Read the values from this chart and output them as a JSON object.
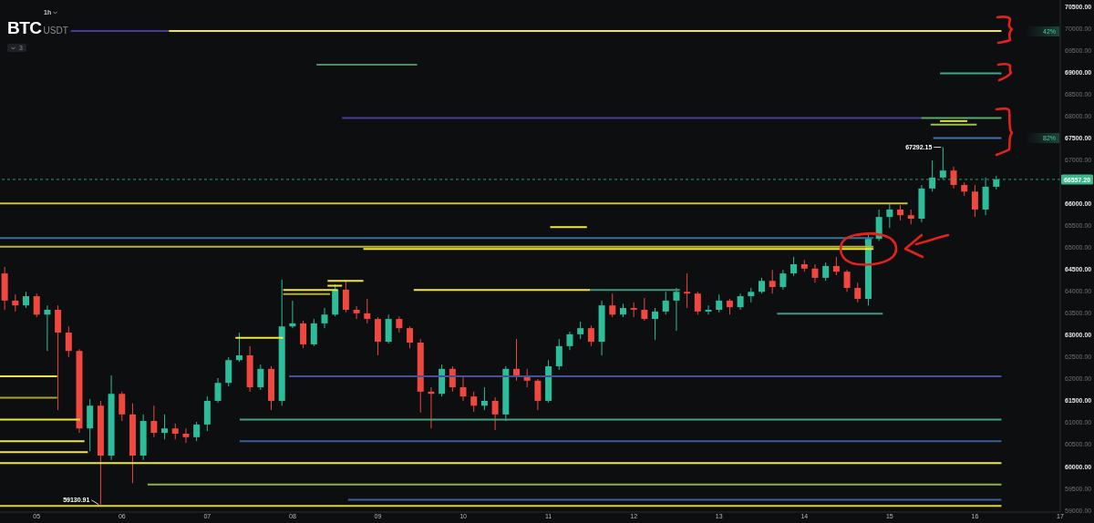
{
  "chart_data": {
    "type": "candlestick",
    "title": "BTC",
    "subtitle": "USDT",
    "x": [
      4.625,
      4.75,
      4.875,
      5,
      5.125,
      5.25,
      5.375,
      5.5,
      5.625,
      5.75,
      5.875,
      6,
      6.125,
      6.25,
      6.375,
      6.5,
      6.625,
      6.75,
      6.875,
      7,
      7.125,
      7.25,
      7.375,
      7.5,
      7.625,
      7.75,
      7.875,
      8,
      8.125,
      8.25,
      8.375,
      8.5,
      8.625,
      8.75,
      8.875,
      9,
      9.125,
      9.25,
      9.375,
      9.5,
      9.625,
      9.75,
      9.875,
      10,
      10.125,
      10.25,
      10.375,
      10.5,
      10.625,
      10.75,
      10.875,
      11,
      11.125,
      11.25,
      11.375,
      11.5,
      11.625,
      11.75,
      11.875,
      12,
      12.125,
      12.25,
      12.375,
      12.5,
      12.625,
      12.75,
      12.875,
      13,
      13.125,
      13.25,
      13.375,
      13.5,
      13.625,
      13.75,
      13.875,
      14,
      14.125,
      14.25,
      14.375,
      14.5,
      14.625,
      14.75,
      14.875,
      15,
      15.125,
      15.25,
      15.375,
      15.5,
      15.625,
      15.75,
      15.875,
      16,
      16.125,
      16.25
    ],
    "ohlc": [
      [
        64410,
        64560,
        63580,
        63790
      ],
      [
        63790,
        63930,
        63540,
        63680
      ],
      [
        63680,
        63990,
        63620,
        63890
      ],
      [
        63890,
        63950,
        63410,
        63470
      ],
      [
        63470,
        63680,
        62640,
        63580
      ],
      [
        63580,
        63680,
        61290,
        63060
      ],
      [
        63060,
        63200,
        62500,
        62640
      ],
      [
        62640,
        62680,
        60770,
        60870
      ],
      [
        60870,
        61540,
        60350,
        61390
      ],
      [
        61390,
        61500,
        59130.91,
        60250
      ],
      [
        60250,
        62080,
        60150,
        61660
      ],
      [
        61660,
        61710,
        61040,
        61190
      ],
      [
        61190,
        61440,
        59620,
        60250
      ],
      [
        60250,
        61190,
        60150,
        61040
      ],
      [
        61040,
        61390,
        60670,
        60770
      ],
      [
        60770,
        61190,
        60620,
        60870
      ],
      [
        60870,
        60980,
        60620,
        60750
      ],
      [
        60750,
        60870,
        60540,
        60670
      ],
      [
        60670,
        61020,
        60580,
        60960
      ],
      [
        60960,
        61600,
        60810,
        61500
      ],
      [
        61500,
        62020,
        61460,
        61910
      ],
      [
        61910,
        62500,
        61830,
        62430
      ],
      [
        62430,
        63060,
        62390,
        62540
      ],
      [
        62540,
        62750,
        61710,
        61810
      ],
      [
        61810,
        62330,
        61750,
        62230
      ],
      [
        62230,
        62290,
        61290,
        61500
      ],
      [
        61500,
        64270,
        61390,
        63200
      ],
      [
        63200,
        63790,
        63160,
        63270
      ],
      [
        63270,
        63330,
        62700,
        62790
      ],
      [
        62790,
        63370,
        62750,
        63270
      ],
      [
        63270,
        63620,
        63160,
        63470
      ],
      [
        63470,
        64160,
        63430,
        64040
      ],
      [
        64040,
        64240,
        63520,
        63580
      ],
      [
        63580,
        63660,
        63370,
        63500
      ],
      [
        63500,
        63830,
        63270,
        63370
      ],
      [
        63370,
        63410,
        62540,
        62850
      ],
      [
        62850,
        63470,
        62810,
        63370
      ],
      [
        63370,
        63430,
        63060,
        63160
      ],
      [
        63160,
        63200,
        62700,
        62830
      ],
      [
        62830,
        62910,
        61230,
        61710
      ],
      [
        61710,
        61810,
        60870,
        61660
      ],
      [
        61660,
        62330,
        61600,
        62230
      ],
      [
        62230,
        62290,
        61710,
        61810
      ],
      [
        61810,
        62060,
        61500,
        61600
      ],
      [
        61600,
        61710,
        61250,
        61390
      ],
      [
        61390,
        61810,
        61290,
        61500
      ],
      [
        61500,
        61580,
        60830,
        61190
      ],
      [
        61190,
        62290,
        61040,
        62230
      ],
      [
        62230,
        62910,
        61960,
        62080
      ],
      [
        62080,
        62230,
        61810,
        61960
      ],
      [
        61960,
        62000,
        61290,
        61500
      ],
      [
        61500,
        62430,
        61460,
        62290
      ],
      [
        62290,
        62910,
        62210,
        62750
      ],
      [
        62750,
        63080,
        62660,
        63020
      ],
      [
        63020,
        63310,
        62910,
        63160
      ],
      [
        63160,
        63220,
        62750,
        62850
      ],
      [
        62850,
        63790,
        62540,
        63680
      ],
      [
        63680,
        63950,
        63410,
        63470
      ],
      [
        63470,
        63720,
        63410,
        63620
      ],
      [
        63620,
        63750,
        63410,
        63580
      ],
      [
        63580,
        63850,
        63330,
        63370
      ],
      [
        63370,
        63620,
        62890,
        63540
      ],
      [
        63540,
        63990,
        63470,
        63790
      ],
      [
        63790,
        64080,
        63100,
        63990
      ],
      [
        63990,
        64410,
        63620,
        63950
      ],
      [
        63950,
        63990,
        63470,
        63540
      ],
      [
        63540,
        63680,
        63470,
        63580
      ],
      [
        63580,
        63930,
        63520,
        63790
      ],
      [
        63790,
        63830,
        63470,
        63640
      ],
      [
        63640,
        63950,
        63580,
        63890
      ],
      [
        63890,
        64080,
        63750,
        63990
      ],
      [
        63990,
        64310,
        63950,
        64240
      ],
      [
        64240,
        64490,
        63950,
        64100
      ],
      [
        64100,
        64490,
        64040,
        64410
      ],
      [
        64410,
        64790,
        64350,
        64620
      ],
      [
        64620,
        64720,
        64450,
        64520
      ],
      [
        64520,
        64620,
        64200,
        64310
      ],
      [
        64310,
        64660,
        64240,
        64580
      ],
      [
        64580,
        64790,
        64370,
        64450
      ],
      [
        64450,
        64490,
        63990,
        64080
      ],
      [
        64080,
        64200,
        63750,
        63830
      ],
      [
        63830,
        65290,
        63680,
        65200
      ],
      [
        65200,
        65870,
        65150,
        65700
      ],
      [
        65700,
        65990,
        65450,
        65870
      ],
      [
        65870,
        65970,
        65620,
        65740
      ],
      [
        65740,
        65870,
        65530,
        65660
      ],
      [
        65660,
        66430,
        65580,
        66350
      ],
      [
        66350,
        66990,
        66280,
        66600
      ],
      [
        66600,
        67292.15,
        66560,
        66760
      ],
      [
        66760,
        66850,
        66350,
        66430
      ],
      [
        66430,
        66490,
        66180,
        66280
      ],
      [
        66280,
        66430,
        65700,
        65870
      ],
      [
        65870,
        66600,
        65740,
        66390
      ],
      [
        66390,
        66640,
        66330,
        66557.2
      ]
    ],
    "colors": [
      "#f0473f",
      "#f0473f",
      "#2ebd9b",
      "#f0473f",
      "#2ebd9b",
      "#f0473f",
      "#f0473f",
      "#f0473f",
      "#2ebd9b",
      "#f0473f",
      "#2ebd9b",
      "#f0473f",
      "#f0473f",
      "#2ebd9b",
      "#f0473f",
      "#2ebd9b",
      "#f0473f",
      "#f0473f",
      "#2ebd9b",
      "#2ebd9b",
      "#2ebd9b",
      "#2ebd9b",
      "#2ebd9b",
      "#f0473f",
      "#2ebd9b",
      "#f0473f",
      "#2ebd9b",
      "#2ebd9b",
      "#f0473f",
      "#2ebd9b",
      "#2ebd9b",
      "#2ebd9b",
      "#f0473f",
      "#f0473f",
      "#f0473f",
      "#f0473f",
      "#2ebd9b",
      "#f0473f",
      "#f0473f",
      "#f0473f",
      "#f0473f",
      "#2ebd9b",
      "#f0473f",
      "#f0473f",
      "#f0473f",
      "#2ebd9b",
      "#f0473f",
      "#2ebd9b",
      "#f0473f",
      "#f0473f",
      "#f0473f",
      "#2ebd9b",
      "#2ebd9b",
      "#2ebd9b",
      "#2ebd9b",
      "#f0473f",
      "#2ebd9b",
      "#f0473f",
      "#2ebd9b",
      "#f0473f",
      "#f0473f",
      "#2ebd9b",
      "#2ebd9b",
      "#2ebd9b",
      "#f0473f",
      "#f0473f",
      "#2ebd9b",
      "#2ebd9b",
      "#f0473f",
      "#2ebd9b",
      "#2ebd9b",
      "#2ebd9b",
      "#f0473f",
      "#2ebd9b",
      "#2ebd9b",
      "#f0473f",
      "#f0473f",
      "#2ebd9b",
      "#f0473f",
      "#f0473f",
      "#f0473f",
      "#2ebd9b",
      "#2ebd9b",
      "#2ebd9b",
      "#f0473f",
      "#f0473f",
      "#2ebd9b",
      "#2ebd9b",
      "#2ebd9b",
      "#f0473f",
      "#f0473f",
      "#f0473f",
      "#2ebd9b",
      "#2ebd9b"
    ],
    "series": [
      {
        "type": "line",
        "x": [
          5.4,
          6.55
        ],
        "values": [
          69950,
          69950
        ],
        "color": "#4a3a92"
      },
      {
        "type": "line",
        "x": [
          6.55,
          16.31
        ],
        "values": [
          69950,
          69950
        ],
        "color": "#f2e73c"
      },
      {
        "type": "line",
        "x": [
          8.28,
          9.46
        ],
        "values": [
          69180,
          69180
        ],
        "color": "#4d8f62"
      },
      {
        "type": "line",
        "x": [
          15.59,
          16.31
        ],
        "values": [
          68980,
          68980
        ],
        "color": "#3fa58c"
      },
      {
        "type": "line",
        "x": [
          8.58,
          15.37
        ],
        "values": [
          67960,
          67960
        ],
        "color": "#4a3d8f"
      },
      {
        "type": "line",
        "x": [
          15.37,
          16.31
        ],
        "values": [
          67960,
          67960
        ],
        "color": "#5aa86a"
      },
      {
        "type": "line",
        "x": [
          15.59,
          15.91
        ],
        "values": [
          67890,
          67890
        ],
        "color": "#e5de3e"
      },
      {
        "type": "line",
        "x": [
          15.48,
          16.02
        ],
        "values": [
          67810,
          67810
        ],
        "color": "#9cc04a"
      },
      {
        "type": "line",
        "x": [
          15.51,
          16.31
        ],
        "values": [
          67500,
          67500
        ],
        "color": "#3f73b0"
      },
      {
        "type": "line",
        "x": [
          4.57,
          15.21
        ],
        "values": [
          66010,
          66010
        ],
        "color": "#c9c23a"
      },
      {
        "type": "line",
        "x": [
          11.02,
          11.45
        ],
        "values": [
          65470,
          65470
        ],
        "color": "#f2e73c"
      },
      {
        "type": "line",
        "x": [
          4.57,
          14.81
        ],
        "values": [
          65220,
          65220
        ],
        "color": "#3d6f9a"
      },
      {
        "type": "line",
        "x": [
          4.57,
          14.81
        ],
        "values": [
          65020,
          65020
        ],
        "color": "#b9b43a"
      },
      {
        "type": "line",
        "x": [
          8.83,
          14.81
        ],
        "values": [
          64970,
          64970
        ],
        "color": "#f2e73c"
      },
      {
        "type": "line",
        "x": [
          8.41,
          8.83
        ],
        "values": [
          64240,
          64240
        ],
        "color": "#f2e73c"
      },
      {
        "type": "line",
        "x": [
          8.41,
          8.58
        ],
        "values": [
          64130,
          64130
        ],
        "color": "#f2e73c"
      },
      {
        "type": "line",
        "x": [
          7.89,
          8.53
        ],
        "values": [
          64030,
          64030
        ],
        "color": "#f2e73c"
      },
      {
        "type": "line",
        "x": [
          9.42,
          11.49
        ],
        "values": [
          64030,
          64030
        ],
        "color": "#f2e73c"
      },
      {
        "type": "line",
        "x": [
          11.49,
          12.54
        ],
        "values": [
          64030,
          64030
        ],
        "color": "#3f9a7c"
      },
      {
        "type": "line",
        "x": [
          7.89,
          8.44
        ],
        "values": [
          63940,
          63940
        ],
        "color": "#b3ad3a"
      },
      {
        "type": "line",
        "x": [
          13.68,
          14.92
        ],
        "values": [
          63490,
          63490
        ],
        "color": "#3f9a8a"
      },
      {
        "type": "line",
        "x": [
          7.33,
          7.89
        ],
        "values": [
          62940,
          62940
        ],
        "color": "#f2e73c"
      },
      {
        "type": "line",
        "x": [
          4.57,
          5.24
        ],
        "values": [
          62060,
          62060
        ],
        "color": "#f2e73c"
      },
      {
        "type": "line",
        "x": [
          7.96,
          16.31
        ],
        "values": [
          62060,
          62060
        ],
        "color": "#4a4f9a"
      },
      {
        "type": "line",
        "x": [
          4.57,
          5.24
        ],
        "values": [
          61570,
          61570
        ],
        "color": "#a9a43a"
      },
      {
        "type": "line",
        "x": [
          4.57,
          5.51
        ],
        "values": [
          61070,
          61070
        ],
        "color": "#f2e73c"
      },
      {
        "type": "line",
        "x": [
          7.38,
          16.31
        ],
        "values": [
          61070,
          61070
        ],
        "color": "#4aa07e"
      },
      {
        "type": "line",
        "x": [
          4.57,
          5.56
        ],
        "values": [
          60580,
          60580
        ],
        "color": "#f2e73c"
      },
      {
        "type": "line",
        "x": [
          7.38,
          16.31
        ],
        "values": [
          60580,
          60580
        ],
        "color": "#3a5f9c"
      },
      {
        "type": "line",
        "x": [
          4.57,
          5.6
        ],
        "values": [
          60330,
          60330
        ],
        "color": "#f2e73c"
      },
      {
        "type": "line",
        "x": [
          4.57,
          16.31
        ],
        "values": [
          60080,
          60080
        ],
        "color": "#f2e73c"
      },
      {
        "type": "line",
        "x": [
          6.3,
          16.31
        ],
        "values": [
          59590,
          59590
        ],
        "color": "#8fb244"
      },
      {
        "type": "line",
        "x": [
          8.65,
          16.31
        ],
        "values": [
          59240,
          59240
        ],
        "color": "#3a5f9c"
      },
      {
        "type": "line",
        "x": [
          4.57,
          16.31
        ],
        "values": [
          59100,
          59100
        ],
        "color": "#e0d83a"
      }
    ],
    "xlim": [
      4.57,
      17.0
    ],
    "xticks": [
      {
        "value": 5,
        "label": "05"
      },
      {
        "value": 6,
        "label": "06"
      },
      {
        "value": 7,
        "label": "07"
      },
      {
        "value": 8,
        "label": "08"
      },
      {
        "value": 9,
        "label": "09"
      },
      {
        "value": 10,
        "label": "10"
      },
      {
        "value": 11,
        "label": "11"
      },
      {
        "value": 12,
        "label": "12"
      },
      {
        "value": 13,
        "label": "13"
      },
      {
        "value": 14,
        "label": "14"
      },
      {
        "value": 15,
        "label": "15"
      },
      {
        "value": 16,
        "label": "16"
      },
      {
        "value": 17,
        "label": "17"
      }
    ],
    "ylim": [
      58960,
      70655
    ],
    "yticks": [
      {
        "value": 59000,
        "label": "59000.00"
      },
      {
        "value": 59500,
        "label": "59500.00"
      },
      {
        "value": 60000,
        "label": "60000.00"
      },
      {
        "value": 60500,
        "label": "60500.00"
      },
      {
        "value": 61000,
        "label": "61000.00"
      },
      {
        "value": 61500,
        "label": "61500.00"
      },
      {
        "value": 62000,
        "label": "62000.00"
      },
      {
        "value": 62500,
        "label": "62500.00"
      },
      {
        "value": 63000,
        "label": "63000.00"
      },
      {
        "value": 63500,
        "label": "63500.00"
      },
      {
        "value": 64000,
        "label": "64000.00"
      },
      {
        "value": 64500,
        "label": "64500.00"
      },
      {
        "value": 65000,
        "label": "65000.00"
      },
      {
        "value": 65500,
        "label": "65500.00"
      },
      {
        "value": 66000,
        "label": "66000.00"
      },
      {
        "value": 67000,
        "label": "67000.00"
      },
      {
        "value": 67500,
        "label": "67500.00"
      },
      {
        "value": 68000,
        "label": "68000.00"
      },
      {
        "value": 68500,
        "label": "68500.00"
      },
      {
        "value": 69000,
        "label": "69000.00"
      },
      {
        "value": 69500,
        "label": "69500.00"
      },
      {
        "value": 70000,
        "label": "70000.00"
      },
      {
        "value": 70500,
        "label": "70500.00"
      }
    ],
    "ref_lines": [
      {
        "axis": "y",
        "value": 66557.2,
        "label": "66557.20",
        "color": "#3fb68b",
        "line_style": "dashed"
      }
    ],
    "annotations": [
      "1h",
      "3",
      "42%",
      "82%",
      {
        "text": "67292.15",
        "x": 15.625,
        "y": 67292.15
      },
      {
        "text": "59130.91",
        "x": 5.75,
        "y": 59130.91
      }
    ]
  }
}
